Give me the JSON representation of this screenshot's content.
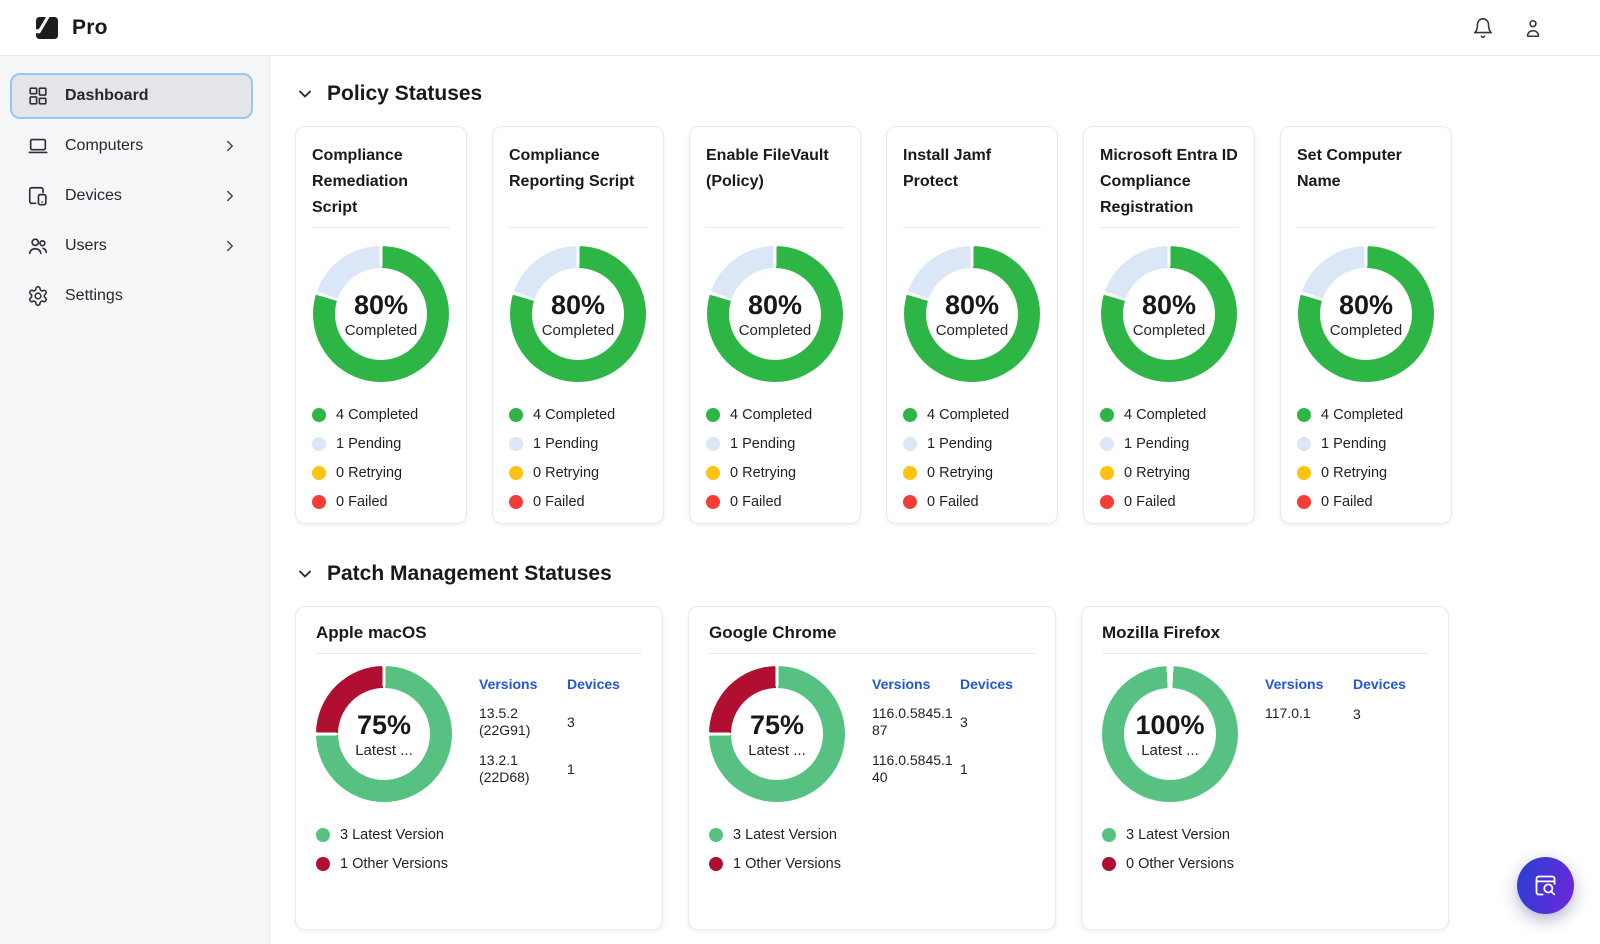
{
  "topbar": {
    "logo_text": "Pro"
  },
  "sidebar": {
    "items": [
      {
        "label": "Dashboard",
        "icon": "dashboard",
        "selected": true,
        "has_chevron": false
      },
      {
        "label": "Computers",
        "icon": "laptop",
        "selected": false,
        "has_chevron": true
      },
      {
        "label": "Devices",
        "icon": "devices",
        "selected": false,
        "has_chevron": true
      },
      {
        "label": "Users",
        "icon": "users",
        "selected": false,
        "has_chevron": true
      },
      {
        "label": "Settings",
        "icon": "gear",
        "selected": false,
        "has_chevron": false
      }
    ]
  },
  "colors": {
    "completed_green": "#2db546",
    "pending_blue": "#dbe6f7",
    "retrying_yellow": "#ffc20e",
    "failed_red": "#f23e36",
    "latest_green": "#57c181",
    "other_red": "#b00f31",
    "table_header_blue": "#2257d4",
    "selected_border_blue": "#9cc5ee",
    "fab_gradient_start": "#2b3fd4",
    "fab_gradient_end": "#6c27d9"
  },
  "policy_section": {
    "title": "Policy Statuses",
    "cards": [
      {
        "title": "Compliance Remediation Script",
        "percent": "80%",
        "center_label": "Completed",
        "segments": [
          {
            "label": "Completed",
            "count": 4,
            "color_key": "completed_green"
          },
          {
            "label": "Pending",
            "count": 1,
            "color_key": "pending_blue"
          },
          {
            "label": "Retrying",
            "count": 0,
            "color_key": "retrying_yellow"
          },
          {
            "label": "Failed",
            "count": 0,
            "color_key": "failed_red"
          }
        ],
        "legend": [
          {
            "text": "4 Completed",
            "color_key": "completed_green"
          },
          {
            "text": "1 Pending",
            "color_key": "pending_blue"
          },
          {
            "text": "0 Retrying",
            "color_key": "retrying_yellow"
          },
          {
            "text": "0 Failed",
            "color_key": "failed_red"
          }
        ]
      },
      {
        "title": "Compliance Reporting Script",
        "percent": "80%",
        "center_label": "Completed",
        "segments": [
          {
            "label": "Completed",
            "count": 4,
            "color_key": "completed_green"
          },
          {
            "label": "Pending",
            "count": 1,
            "color_key": "pending_blue"
          },
          {
            "label": "Retrying",
            "count": 0,
            "color_key": "retrying_yellow"
          },
          {
            "label": "Failed",
            "count": 0,
            "color_key": "failed_red"
          }
        ],
        "legend": [
          {
            "text": "4 Completed",
            "color_key": "completed_green"
          },
          {
            "text": "1 Pending",
            "color_key": "pending_blue"
          },
          {
            "text": "0 Retrying",
            "color_key": "retrying_yellow"
          },
          {
            "text": "0 Failed",
            "color_key": "failed_red"
          }
        ]
      },
      {
        "title": "Enable FileVault (Policy)",
        "percent": "80%",
        "center_label": "Completed",
        "segments": [
          {
            "label": "Completed",
            "count": 4,
            "color_key": "completed_green"
          },
          {
            "label": "Pending",
            "count": 1,
            "color_key": "pending_blue"
          },
          {
            "label": "Retrying",
            "count": 0,
            "color_key": "retrying_yellow"
          },
          {
            "label": "Failed",
            "count": 0,
            "color_key": "failed_red"
          }
        ],
        "legend": [
          {
            "text": "4 Completed",
            "color_key": "completed_green"
          },
          {
            "text": "1 Pending",
            "color_key": "pending_blue"
          },
          {
            "text": "0 Retrying",
            "color_key": "retrying_yellow"
          },
          {
            "text": "0 Failed",
            "color_key": "failed_red"
          }
        ]
      },
      {
        "title": "Install Jamf Protect",
        "percent": "80%",
        "center_label": "Completed",
        "segments": [
          {
            "label": "Completed",
            "count": 4,
            "color_key": "completed_green"
          },
          {
            "label": "Pending",
            "count": 1,
            "color_key": "pending_blue"
          },
          {
            "label": "Retrying",
            "count": 0,
            "color_key": "retrying_yellow"
          },
          {
            "label": "Failed",
            "count": 0,
            "color_key": "failed_red"
          }
        ],
        "legend": [
          {
            "text": "4 Completed",
            "color_key": "completed_green"
          },
          {
            "text": "1 Pending",
            "color_key": "pending_blue"
          },
          {
            "text": "0 Retrying",
            "color_key": "retrying_yellow"
          },
          {
            "text": "0 Failed",
            "color_key": "failed_red"
          }
        ]
      },
      {
        "title": "Microsoft Entra ID Compliance Registration",
        "percent": "80%",
        "center_label": "Completed",
        "segments": [
          {
            "label": "Completed",
            "count": 4,
            "color_key": "completed_green"
          },
          {
            "label": "Pending",
            "count": 1,
            "color_key": "pending_blue"
          },
          {
            "label": "Retrying",
            "count": 0,
            "color_key": "retrying_yellow"
          },
          {
            "label": "Failed",
            "count": 0,
            "color_key": "failed_red"
          }
        ],
        "legend": [
          {
            "text": "4 Completed",
            "color_key": "completed_green"
          },
          {
            "text": "1 Pending",
            "color_key": "pending_blue"
          },
          {
            "text": "0 Retrying",
            "color_key": "retrying_yellow"
          },
          {
            "text": "0 Failed",
            "color_key": "failed_red"
          }
        ]
      },
      {
        "title": "Set Computer Name",
        "percent": "80%",
        "center_label": "Completed",
        "segments": [
          {
            "label": "Completed",
            "count": 4,
            "color_key": "completed_green"
          },
          {
            "label": "Pending",
            "count": 1,
            "color_key": "pending_blue"
          },
          {
            "label": "Retrying",
            "count": 0,
            "color_key": "retrying_yellow"
          },
          {
            "label": "Failed",
            "count": 0,
            "color_key": "failed_red"
          }
        ],
        "legend": [
          {
            "text": "4 Completed",
            "color_key": "completed_green"
          },
          {
            "text": "1 Pending",
            "color_key": "pending_blue"
          },
          {
            "text": "0 Retrying",
            "color_key": "retrying_yellow"
          },
          {
            "text": "0 Failed",
            "color_key": "failed_red"
          }
        ]
      }
    ]
  },
  "patch_section": {
    "title": "Patch Management Statuses",
    "cards": [
      {
        "title": "Apple macOS",
        "percent": "75%",
        "center_label": "Latest ...",
        "segments": [
          {
            "label": "Latest Version",
            "count": 3,
            "color_key": "latest_green"
          },
          {
            "label": "Other Versions",
            "count": 1,
            "color_key": "other_red"
          }
        ],
        "table": {
          "headers": [
            "Versions",
            "Devices"
          ],
          "rows": [
            {
              "version": "13.5.2 (22G91)",
              "devices": "3"
            },
            {
              "version": "13.2.1 (22D68)",
              "devices": "1"
            }
          ]
        },
        "legend": [
          {
            "text": "3 Latest Version",
            "color_key": "latest_green"
          },
          {
            "text": "1 Other Versions",
            "color_key": "other_red"
          }
        ]
      },
      {
        "title": "Google Chrome",
        "percent": "75%",
        "center_label": "Latest ...",
        "segments": [
          {
            "label": "Latest Version",
            "count": 3,
            "color_key": "latest_green"
          },
          {
            "label": "Other Versions",
            "count": 1,
            "color_key": "other_red"
          }
        ],
        "table": {
          "headers": [
            "Versions",
            "Devices"
          ],
          "rows": [
            {
              "version": "116.0.5845.187",
              "devices": "3"
            },
            {
              "version": "116.0.5845.140",
              "devices": "1"
            }
          ]
        },
        "legend": [
          {
            "text": "3 Latest Version",
            "color_key": "latest_green"
          },
          {
            "text": "1 Other Versions",
            "color_key": "other_red"
          }
        ]
      },
      {
        "title": "Mozilla Firefox",
        "percent": "100%",
        "center_label": "Latest ...",
        "segments": [
          {
            "label": "Latest Version",
            "count": 3,
            "color_key": "latest_green"
          },
          {
            "label": "Other Versions",
            "count": 0,
            "color_key": "other_red"
          }
        ],
        "table": {
          "headers": [
            "Versions",
            "Devices"
          ],
          "rows": [
            {
              "version": "117.0.1",
              "devices": "3"
            }
          ]
        },
        "legend": [
          {
            "text": "3 Latest Version",
            "color_key": "latest_green"
          },
          {
            "text": "0 Other Versions",
            "color_key": "other_red"
          }
        ]
      }
    ]
  }
}
